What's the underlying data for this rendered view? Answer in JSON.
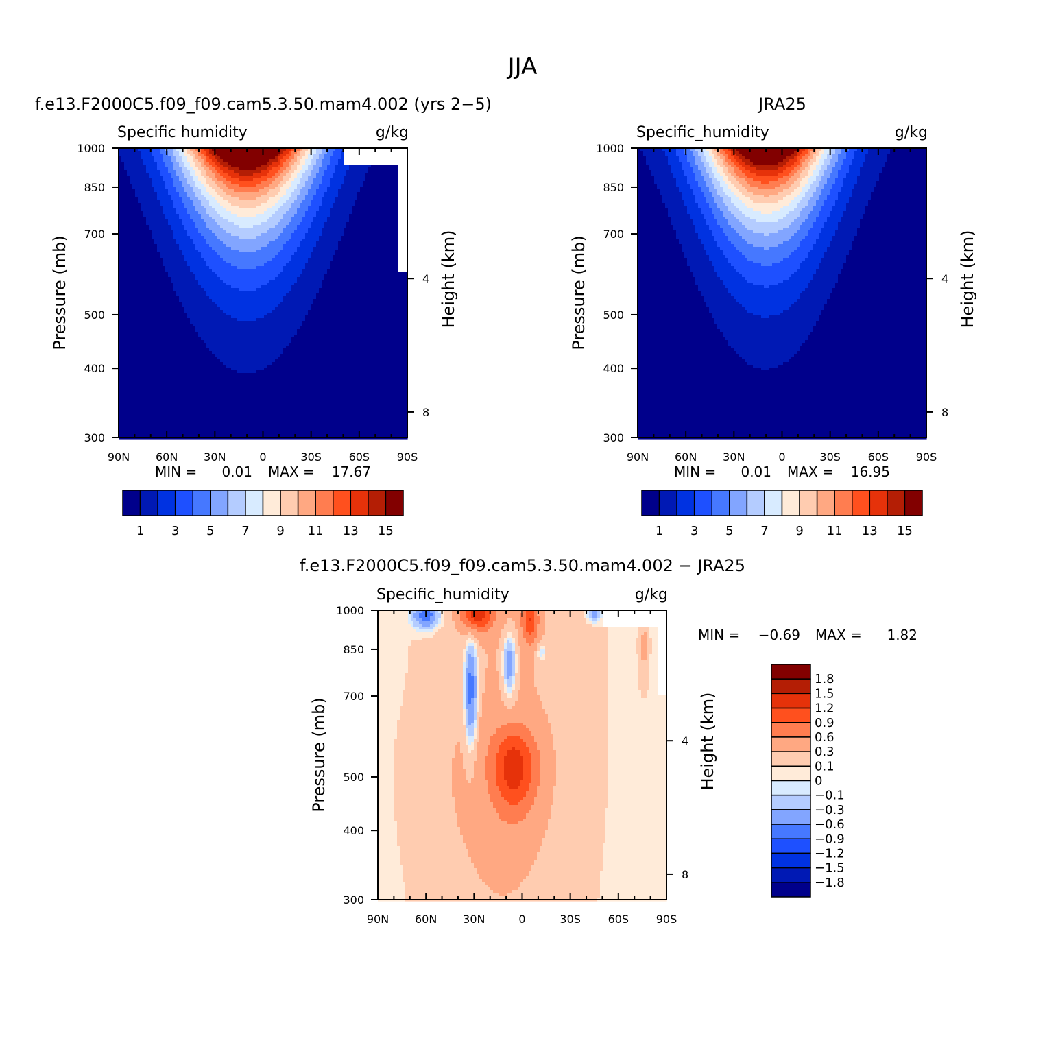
{
  "figure": {
    "title": "JJA"
  },
  "colors": {
    "abs": [
      "#00008b",
      "#0019b4",
      "#0032e1",
      "#1e50ff",
      "#4678ff",
      "#82a5ff",
      "#b4ccff",
      "#d8ebff",
      "#ffebd9",
      "#ffccb0",
      "#ffa882",
      "#ff7d50",
      "#ff501e",
      "#e6320a",
      "#b41e05",
      "#820000"
    ],
    "diff": [
      "#00008b",
      "#0019b4",
      "#0032e1",
      "#1e50ff",
      "#4678ff",
      "#82a5ff",
      "#b4ccff",
      "#d8ebff",
      "#ffebd9",
      "#ffccb0",
      "#ffa882",
      "#ff7d50",
      "#ff501e",
      "#e6320a",
      "#b41e05",
      "#820000"
    ]
  },
  "chart_data": [
    {
      "type": "heatmap",
      "title": "f.e13.F2000C5.f09_f09.cam5.3.50.mam4.002 (yrs 2−5)",
      "left_string": "Specific humidity",
      "right_string": "g/kg",
      "ylabel": "Pressure (mb)",
      "ylabel_right": "Height (km)",
      "x_ticks": [
        "90N",
        "60N",
        "30N",
        "0",
        "30S",
        "60S",
        "90S"
      ],
      "y_ticks": [
        "300",
        "400",
        "500",
        "700",
        "850",
        "1000"
      ],
      "y_ticks_right": [
        "8",
        "4"
      ],
      "min_label": "MIN =",
      "min_value": "0.01",
      "max_label": "MAX =",
      "max_value": "17.67",
      "colorbar_labels": [
        "1",
        "3",
        "5",
        "7",
        "9",
        "11",
        "13",
        "15"
      ],
      "x": [
        90,
        80,
        70,
        60,
        50,
        40,
        30,
        20,
        10,
        0,
        -10,
        -20,
        -30,
        -40,
        -50,
        -60,
        -70,
        -80,
        -90
      ],
      "peak": {
        "lat": 10,
        "q1000": 18,
        "halfwidth": 37
      },
      "masked": [
        {
          "lat_from": -50,
          "lat_to": -90,
          "p_from": 1000,
          "p_to": 935
        },
        {
          "lat_from": -85,
          "lat_to": -90,
          "p_from": 935,
          "p_to": 600
        }
      ]
    },
    {
      "type": "heatmap",
      "title": "JRA25",
      "left_string": "Specific_humidity",
      "right_string": "g/kg",
      "ylabel": "Pressure (mb)",
      "ylabel_right": "Height (km)",
      "x_ticks": [
        "90N",
        "60N",
        "30N",
        "0",
        "30S",
        "60S",
        "90S"
      ],
      "y_ticks": [
        "300",
        "400",
        "500",
        "700",
        "850",
        "1000"
      ],
      "y_ticks_right": [
        "8",
        "4"
      ],
      "min_label": "MIN =",
      "min_value": "0.01",
      "max_label": "MAX =",
      "max_value": "16.95",
      "colorbar_labels": [
        "1",
        "3",
        "5",
        "7",
        "9",
        "11",
        "13",
        "15"
      ],
      "x": [
        90,
        80,
        70,
        60,
        50,
        40,
        30,
        20,
        10,
        0,
        -10,
        -20,
        -30,
        -40,
        -50,
        -60,
        -70,
        -80,
        -90
      ],
      "peak": {
        "lat": 10,
        "q1000": 17,
        "halfwidth": 35
      },
      "masked": []
    },
    {
      "type": "heatmap",
      "title": "f.e13.F2000C5.f09_f09.cam5.3.50.mam4.002 − JRA25",
      "left_string": "Specific_humidity",
      "right_string": "g/kg",
      "ylabel": "Pressure (mb)",
      "ylabel_right": "Height (km)",
      "x_ticks": [
        "90N",
        "60N",
        "30N",
        "0",
        "30S",
        "60S",
        "90S"
      ],
      "y_ticks": [
        "300",
        "400",
        "500",
        "700",
        "850",
        "1000"
      ],
      "y_ticks_right": [
        "8",
        "4"
      ],
      "min_label": "MIN =",
      "min_value": "−0.69",
      "max_label": "MAX =",
      "max_value": "1.82",
      "colorbar_labels": [
        "1.8",
        "1.5",
        "1.2",
        "0.9",
        "0.6",
        "0.3",
        "0.1",
        "0",
        "−0.1",
        "−0.3",
        "−0.6",
        "−0.9",
        "−1.2",
        "−1.5",
        "−1.8"
      ],
      "features": [
        {
          "lat": 5,
          "p": 520,
          "amp": 1.0,
          "dlat": 14,
          "dp": 90
        },
        {
          "lat": 28,
          "p": 990,
          "amp": 1.2,
          "dlat": 10,
          "dp": 70
        },
        {
          "lat": -5,
          "p": 960,
          "amp": 0.9,
          "dlat": 5,
          "dp": 90
        },
        {
          "lat": 32,
          "p": 720,
          "amp": -1.0,
          "dlat": 4,
          "dp": 150
        },
        {
          "lat": 8,
          "p": 800,
          "amp": -0.8,
          "dlat": 4,
          "dp": 100
        },
        {
          "lat": -12,
          "p": 840,
          "amp": -0.4,
          "dlat": 3,
          "dp": 30
        },
        {
          "lat": 60,
          "p": 980,
          "amp": -0.9,
          "dlat": 8,
          "dp": 50
        },
        {
          "lat": -45,
          "p": 985,
          "amp": -0.6,
          "dlat": 4,
          "dp": 30
        },
        {
          "lat": -76,
          "p": 860,
          "amp": 0.3,
          "dlat": 3,
          "dp": 120
        }
      ],
      "masked": [
        {
          "lat_from": -50,
          "lat_to": -90,
          "p_from": 1000,
          "p_to": 935
        },
        {
          "lat_from": -85,
          "lat_to": -90,
          "p_from": 935,
          "p_to": 700
        }
      ]
    }
  ]
}
